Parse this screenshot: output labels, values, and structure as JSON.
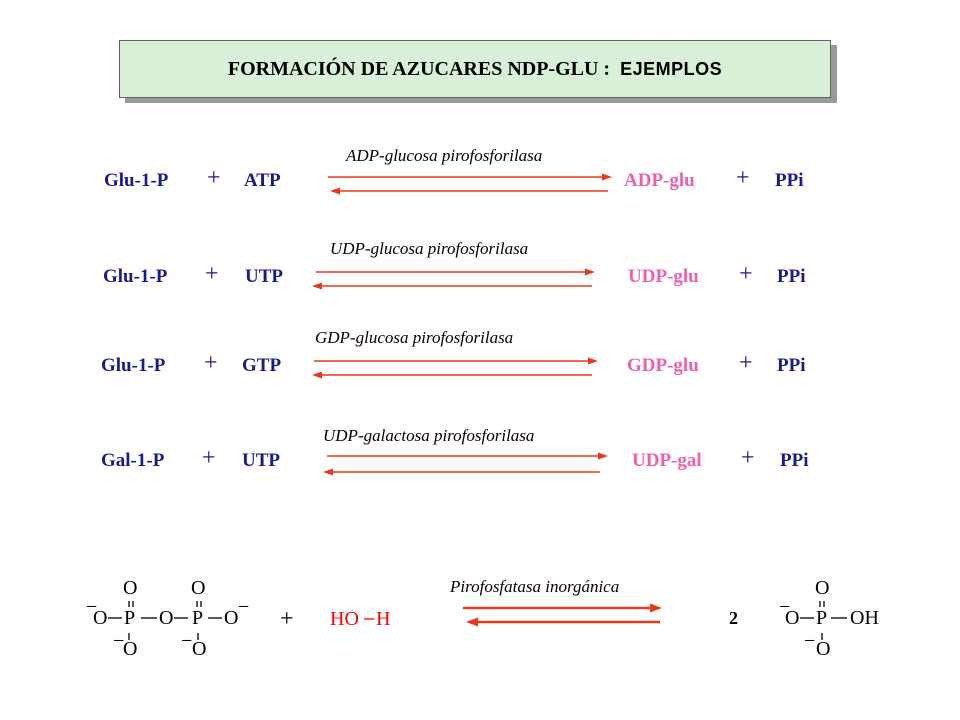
{
  "title": {
    "main": "FORMACIÓN DE AZUCARES  NDP-GLU :",
    "emph": "EJEMPLOS"
  },
  "plus_sign": "+",
  "reactions": [
    {
      "enzyme": "ADP-glucosa  pirofosforilasa",
      "substrate": "Glu-1-P",
      "nucleotide": "ATP",
      "product": "ADP-glu",
      "byproduct": "PPi"
    },
    {
      "enzyme": "UDP-glucosa  pirofosforilasa",
      "substrate": "Glu-1-P",
      "nucleotide": "UTP",
      "product": "UDP-glu",
      "byproduct": "PPi"
    },
    {
      "enzyme": "GDP-glucosa  pirofosforilasa",
      "substrate": "Glu-1-P",
      "nucleotide": "GTP",
      "product": "GDP-glu",
      "byproduct": "PPi"
    },
    {
      "enzyme": "UDP-galactosa  pirofosforilasa",
      "substrate": "Gal-1-P",
      "nucleotide": "UTP",
      "product": "UDP-gal",
      "byproduct": "PPi"
    }
  ],
  "hydrolysis": {
    "enzyme": "Pirofosfatasa inorgánica",
    "water_ho": "HO",
    "water_h": "H",
    "coefficient": "2",
    "oxygen": "O",
    "phosphorus": "P",
    "hydroxyl": "OH",
    "minus": "−"
  },
  "colors": {
    "substrate": "#1a1a8c",
    "product": "#ee5fb0",
    "arrow": "#e8391f",
    "water": "#ff0000",
    "title_bg": "#d8f0d8"
  }
}
